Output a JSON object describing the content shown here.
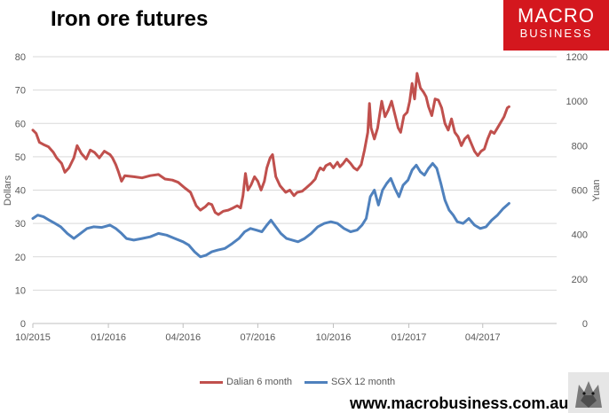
{
  "title": "Iron ore futures",
  "logo": {
    "line1": "MACRO",
    "line2": "BUSINESS"
  },
  "website": "www.macrobusiness.com.au",
  "colors": {
    "dalian": "#c0504d",
    "sgx": "#4f81bd",
    "logo_bg": "#d4171e"
  },
  "chart_data": {
    "type": "line",
    "title": "Iron ore futures",
    "y_left": {
      "label": "Dollars",
      "range": [
        0,
        80
      ],
      "ticks": [
        0,
        10,
        20,
        30,
        40,
        50,
        60,
        70,
        80
      ]
    },
    "y_right": {
      "label": "Yuan",
      "range": [
        0,
        1200
      ],
      "ticks": [
        0,
        200,
        400,
        600,
        800,
        1000,
        1200
      ]
    },
    "x_axis": {
      "range": [
        "2015-10-01",
        "2017-06-30"
      ],
      "tick_labels": [
        "10/2015",
        "01/2016",
        "04/2016",
        "07/2016",
        "10/2016",
        "01/2017",
        "04/2017"
      ],
      "tick_dates": [
        "2015-10-01",
        "2016-01-01",
        "2016-04-01",
        "2016-07-01",
        "2016-10-01",
        "2017-01-01",
        "2017-04-01"
      ]
    },
    "grid": "horizontal",
    "legend": "bottom",
    "series": [
      {
        "name": "Dalian 6 month",
        "axis": "right",
        "color": "#c0504d",
        "points": [
          [
            "2015-10-01",
            870
          ],
          [
            "2015-10-05",
            855
          ],
          [
            "2015-10-09",
            815
          ],
          [
            "2015-10-14",
            805
          ],
          [
            "2015-10-20",
            795
          ],
          [
            "2015-10-26",
            770
          ],
          [
            "2015-10-30",
            745
          ],
          [
            "2015-11-05",
            720
          ],
          [
            "2015-11-09",
            680
          ],
          [
            "2015-11-14",
            700
          ],
          [
            "2015-11-20",
            745
          ],
          [
            "2015-11-24",
            800
          ],
          [
            "2015-11-29",
            765
          ],
          [
            "2015-12-05",
            740
          ],
          [
            "2015-12-10",
            780
          ],
          [
            "2015-12-15",
            770
          ],
          [
            "2015-12-21",
            745
          ],
          [
            "2015-12-27",
            775
          ],
          [
            "2016-01-03",
            760
          ],
          [
            "2016-01-06",
            745
          ],
          [
            "2016-01-10",
            715
          ],
          [
            "2016-01-13",
            685
          ],
          [
            "2016-01-17",
            640
          ],
          [
            "2016-01-21",
            665
          ],
          [
            "2016-02-01",
            660
          ],
          [
            "2016-02-11",
            655
          ],
          [
            "2016-02-21",
            665
          ],
          [
            "2016-03-02",
            670
          ],
          [
            "2016-03-10",
            650
          ],
          [
            "2016-03-19",
            645
          ],
          [
            "2016-03-26",
            635
          ],
          [
            "2016-04-03",
            610
          ],
          [
            "2016-04-10",
            590
          ],
          [
            "2016-04-17",
            530
          ],
          [
            "2016-04-22",
            510
          ],
          [
            "2016-04-28",
            525
          ],
          [
            "2016-05-02",
            540
          ],
          [
            "2016-05-06",
            535
          ],
          [
            "2016-05-10",
            500
          ],
          [
            "2016-05-14",
            490
          ],
          [
            "2016-05-20",
            505
          ],
          [
            "2016-05-26",
            510
          ],
          [
            "2016-06-01",
            520
          ],
          [
            "2016-06-06",
            530
          ],
          [
            "2016-06-10",
            520
          ],
          [
            "2016-06-13",
            575
          ],
          [
            "2016-06-16",
            675
          ],
          [
            "2016-06-19",
            600
          ],
          [
            "2016-06-23",
            625
          ],
          [
            "2016-06-27",
            660
          ],
          [
            "2016-07-01",
            640
          ],
          [
            "2016-07-05",
            600
          ],
          [
            "2016-07-09",
            640
          ],
          [
            "2016-07-12",
            700
          ],
          [
            "2016-07-16",
            745
          ],
          [
            "2016-07-19",
            760
          ],
          [
            "2016-07-23",
            660
          ],
          [
            "2016-07-28",
            620
          ],
          [
            "2016-08-04",
            590
          ],
          [
            "2016-08-09",
            600
          ],
          [
            "2016-08-14",
            575
          ],
          [
            "2016-08-18",
            590
          ],
          [
            "2016-08-24",
            595
          ],
          [
            "2016-08-29",
            610
          ],
          [
            "2016-09-04",
            630
          ],
          [
            "2016-09-09",
            650
          ],
          [
            "2016-09-12",
            680
          ],
          [
            "2016-09-15",
            700
          ],
          [
            "2016-09-19",
            690
          ],
          [
            "2016-09-22",
            710
          ],
          [
            "2016-09-27",
            720
          ],
          [
            "2016-10-01",
            700
          ],
          [
            "2016-10-06",
            725
          ],
          [
            "2016-10-09",
            705
          ],
          [
            "2016-10-13",
            720
          ],
          [
            "2016-10-17",
            740
          ],
          [
            "2016-10-22",
            720
          ],
          [
            "2016-10-26",
            700
          ],
          [
            "2016-10-30",
            690
          ],
          [
            "2016-11-04",
            715
          ],
          [
            "2016-11-08",
            780
          ],
          [
            "2016-11-12",
            860
          ],
          [
            "2016-11-14",
            990
          ],
          [
            "2016-11-16",
            880
          ],
          [
            "2016-11-20",
            830
          ],
          [
            "2016-11-24",
            880
          ],
          [
            "2016-11-29",
            1000
          ],
          [
            "2016-12-03",
            930
          ],
          [
            "2016-12-07",
            960
          ],
          [
            "2016-12-11",
            1000
          ],
          [
            "2016-12-15",
            940
          ],
          [
            "2016-12-19",
            880
          ],
          [
            "2016-12-22",
            860
          ],
          [
            "2016-12-26",
            935
          ],
          [
            "2016-12-30",
            950
          ],
          [
            "2017-01-02",
            1000
          ],
          [
            "2017-01-05",
            1080
          ],
          [
            "2017-01-08",
            1010
          ],
          [
            "2017-01-11",
            1125
          ],
          [
            "2017-01-15",
            1060
          ],
          [
            "2017-01-19",
            1040
          ],
          [
            "2017-01-22",
            1020
          ],
          [
            "2017-01-25",
            975
          ],
          [
            "2017-01-29",
            935
          ],
          [
            "2017-02-02",
            1010
          ],
          [
            "2017-02-06",
            1005
          ],
          [
            "2017-02-10",
            970
          ],
          [
            "2017-02-14",
            900
          ],
          [
            "2017-02-18",
            870
          ],
          [
            "2017-02-22",
            920
          ],
          [
            "2017-02-26",
            860
          ],
          [
            "2017-03-02",
            840
          ],
          [
            "2017-03-06",
            800
          ],
          [
            "2017-03-10",
            830
          ],
          [
            "2017-03-14",
            845
          ],
          [
            "2017-03-18",
            810
          ],
          [
            "2017-03-22",
            775
          ],
          [
            "2017-03-26",
            755
          ],
          [
            "2017-03-30",
            775
          ],
          [
            "2017-04-03",
            785
          ],
          [
            "2017-04-07",
            830
          ],
          [
            "2017-04-11",
            865
          ],
          [
            "2017-04-15",
            855
          ],
          [
            "2017-04-19",
            880
          ],
          [
            "2017-04-23",
            905
          ],
          [
            "2017-04-27",
            930
          ],
          [
            "2017-05-01",
            970
          ],
          [
            "2017-05-03",
            975
          ]
        ]
      },
      {
        "name": "SGX 12 month",
        "axis": "left",
        "color": "#4f81bd",
        "points": [
          [
            "2015-10-01",
            31.5
          ],
          [
            "2015-10-07",
            32.5
          ],
          [
            "2015-10-14",
            32.0
          ],
          [
            "2015-10-21",
            31.0
          ],
          [
            "2015-10-28",
            30.0
          ],
          [
            "2015-11-04",
            29.0
          ],
          [
            "2015-11-12",
            27.0
          ],
          [
            "2015-11-20",
            25.5
          ],
          [
            "2015-11-28",
            27.0
          ],
          [
            "2015-12-06",
            28.5
          ],
          [
            "2015-12-14",
            29.0
          ],
          [
            "2015-12-24",
            28.8
          ],
          [
            "2016-01-03",
            29.5
          ],
          [
            "2016-01-10",
            28.5
          ],
          [
            "2016-01-17",
            27.0
          ],
          [
            "2016-01-23",
            25.5
          ],
          [
            "2016-02-01",
            25.0
          ],
          [
            "2016-02-11",
            25.5
          ],
          [
            "2016-02-21",
            26.0
          ],
          [
            "2016-03-02",
            27.0
          ],
          [
            "2016-03-12",
            26.5
          ],
          [
            "2016-03-22",
            25.5
          ],
          [
            "2016-04-01",
            24.5
          ],
          [
            "2016-04-08",
            23.5
          ],
          [
            "2016-04-15",
            21.5
          ],
          [
            "2016-04-22",
            20.0
          ],
          [
            "2016-04-29",
            20.5
          ],
          [
            "2016-05-06",
            21.5
          ],
          [
            "2016-05-13",
            22.0
          ],
          [
            "2016-05-22",
            22.5
          ],
          [
            "2016-05-31",
            24.0
          ],
          [
            "2016-06-08",
            25.5
          ],
          [
            "2016-06-15",
            27.5
          ],
          [
            "2016-06-22",
            28.5
          ],
          [
            "2016-06-29",
            28.0
          ],
          [
            "2016-07-06",
            27.5
          ],
          [
            "2016-07-12",
            29.5
          ],
          [
            "2016-07-17",
            31.0
          ],
          [
            "2016-07-23",
            29.0
          ],
          [
            "2016-07-29",
            27.0
          ],
          [
            "2016-08-05",
            25.5
          ],
          [
            "2016-08-12",
            25.0
          ],
          [
            "2016-08-19",
            24.5
          ],
          [
            "2016-08-27",
            25.5
          ],
          [
            "2016-09-04",
            27.0
          ],
          [
            "2016-09-12",
            29.0
          ],
          [
            "2016-09-20",
            30.0
          ],
          [
            "2016-09-28",
            30.5
          ],
          [
            "2016-10-06",
            30.0
          ],
          [
            "2016-10-14",
            28.5
          ],
          [
            "2016-10-22",
            27.5
          ],
          [
            "2016-10-30",
            28.0
          ],
          [
            "2016-11-05",
            29.5
          ],
          [
            "2016-11-10",
            31.5
          ],
          [
            "2016-11-15",
            38.0
          ],
          [
            "2016-11-20",
            40.0
          ],
          [
            "2016-11-25",
            35.5
          ],
          [
            "2016-11-30",
            40.0
          ],
          [
            "2016-12-05",
            42.0
          ],
          [
            "2016-12-10",
            43.5
          ],
          [
            "2016-12-15",
            40.5
          ],
          [
            "2016-12-20",
            38.0
          ],
          [
            "2016-12-25",
            41.5
          ],
          [
            "2016-12-31",
            43.0
          ],
          [
            "2017-01-05",
            46.0
          ],
          [
            "2017-01-10",
            47.5
          ],
          [
            "2017-01-15",
            45.5
          ],
          [
            "2017-01-20",
            44.5
          ],
          [
            "2017-01-25",
            46.5
          ],
          [
            "2017-01-30",
            48.0
          ],
          [
            "2017-02-04",
            46.5
          ],
          [
            "2017-02-09",
            42.0
          ],
          [
            "2017-02-14",
            37.0
          ],
          [
            "2017-02-19",
            34.0
          ],
          [
            "2017-02-24",
            32.5
          ],
          [
            "2017-03-01",
            30.5
          ],
          [
            "2017-03-08",
            30.0
          ],
          [
            "2017-03-15",
            31.5
          ],
          [
            "2017-03-22",
            29.5
          ],
          [
            "2017-03-29",
            28.5
          ],
          [
            "2017-04-05",
            29.0
          ],
          [
            "2017-04-12",
            31.0
          ],
          [
            "2017-04-19",
            32.5
          ],
          [
            "2017-04-26",
            34.5
          ],
          [
            "2017-05-03",
            36.0
          ]
        ]
      }
    ]
  }
}
